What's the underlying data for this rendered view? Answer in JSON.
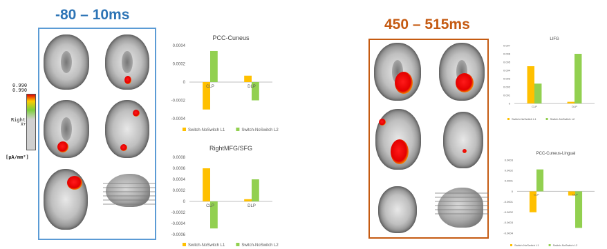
{
  "left_panel": {
    "time_label": "-80 – 10ms",
    "time_color": "#2e75b6",
    "frame_color": "#5b9bd5"
  },
  "right_panel": {
    "time_label": "450 – 515ms",
    "time_color": "#c55a11",
    "frame_color": "#c55a11"
  },
  "colorbar": {
    "top_value_1": "0.990",
    "top_value_2": "0.990",
    "mid_label_1": "Right",
    "mid_label_2": "X+",
    "unit": "[µA/mm²]"
  },
  "colors": {
    "series1": "#ffc000",
    "series2": "#92d050",
    "axis": "#bfbfbf",
    "text": "#595959",
    "activation": "#e30000"
  },
  "chart_data": [
    {
      "type": "bar",
      "title": "PCC-Cuneus",
      "categories": [
        "CLP",
        "DLP"
      ],
      "series": [
        {
          "name": "Switch-NoSwitch L1",
          "values": [
            -0.0003,
            7e-05
          ]
        },
        {
          "name": "Switch-NoSwitch L2",
          "values": [
            0.00034,
            -0.0002
          ]
        }
      ],
      "ylim": [
        -0.0004,
        0.0004
      ],
      "yticks": [
        "0.0004",
        "0.0002",
        "0",
        "-0.0002",
        "-0.0004"
      ],
      "legend": "bottom"
    },
    {
      "type": "bar",
      "title": "RightMFG/SFG",
      "categories": [
        "CLP",
        "DLP"
      ],
      "series": [
        {
          "name": "Switch-NoSwitch L1",
          "values": [
            0.0006,
            4e-05
          ]
        },
        {
          "name": "Switch-NoSwitch L2",
          "values": [
            -0.00049,
            0.0004
          ]
        }
      ],
      "ylim": [
        -0.0006,
        0.0008
      ],
      "yticks": [
        "0.0008",
        "0.0006",
        "0.0004",
        "0.0002",
        "0",
        "-0.0002",
        "-0.0004",
        "-0.0006"
      ],
      "legend": "bottom"
    },
    {
      "type": "bar",
      "title": "LIFG",
      "categories": [
        "CLP",
        "DLP"
      ],
      "series": [
        {
          "name": "Switch-NoSwitch L1",
          "values": [
            0.0045,
            0.0002
          ]
        },
        {
          "name": "Switch-NoSwitch L2",
          "values": [
            0.0024,
            0.006
          ]
        }
      ],
      "ylim": [
        0,
        0.007
      ],
      "yticks": [
        "0.007",
        "0.006",
        "0.005",
        "0.004",
        "0.003",
        "0.002",
        "0.001",
        "0"
      ],
      "legend": "bottom"
    },
    {
      "type": "bar",
      "title": "PCC-Cuneus-Lingual",
      "categories": [
        "CLP",
        "DLP"
      ],
      "series": [
        {
          "name": "Switch-NoSwitch L1",
          "values": [
            -0.0002,
            -4e-05
          ]
        },
        {
          "name": "Switch-NoSwitch L2",
          "values": [
            0.00021,
            -0.00035
          ]
        }
      ],
      "ylim": [
        -0.0004,
        0.0003
      ],
      "yticks": [
        "0.0003",
        "0.0002",
        "0.0001",
        "0",
        "-0.0001",
        "-0.0002",
        "-0.0003",
        "-0.0004"
      ],
      "legend": "bottom"
    }
  ]
}
